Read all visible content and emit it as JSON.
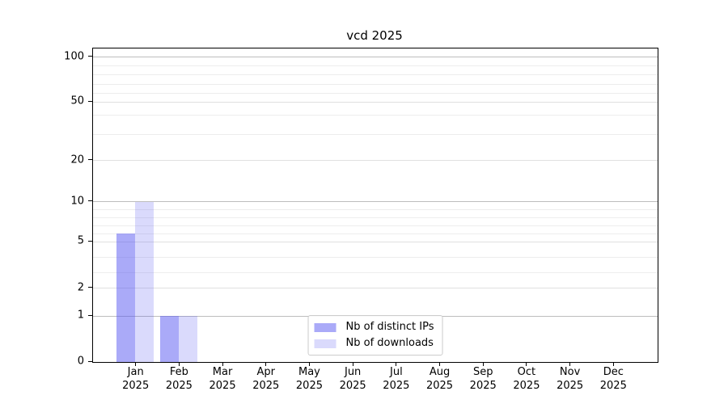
{
  "chart_data": {
    "type": "bar",
    "title": "vcd 2025",
    "categories": [
      "Jan",
      "Feb",
      "Mar",
      "Apr",
      "May",
      "Jun",
      "Jul",
      "Aug",
      "Sep",
      "Oct",
      "Nov",
      "Dec"
    ],
    "year_label": "2025",
    "series": [
      {
        "name": "Nb of distinct IPs",
        "color": "rgba(86,86,242,0.5)",
        "values": [
          6,
          1,
          0,
          0,
          0,
          0,
          0,
          0,
          0,
          0,
          0,
          0
        ]
      },
      {
        "name": "Nb of downloads",
        "color": "rgba(86,86,242,0.22)",
        "values": [
          10,
          1,
          0,
          0,
          0,
          0,
          0,
          0,
          0,
          0,
          0,
          0
        ]
      }
    ],
    "xlabel": "",
    "ylabel": "",
    "ylim": [
      0,
      100
    ],
    "y_axis": {
      "scale": "log-like with labeled ticks 0,1,2,5,10,20,50,100",
      "tick_values": [
        0,
        1,
        2,
        5,
        10,
        20,
        50,
        100
      ],
      "tick_labels": [
        "0",
        "1",
        "2",
        "5",
        "10",
        "20",
        "50",
        "100"
      ],
      "major_grid_values": [
        1,
        10,
        100
      ],
      "mid_grid_values": [
        2,
        5,
        20,
        50
      ],
      "minor_grid_values": [
        3,
        4,
        6,
        7,
        8,
        9,
        30,
        40,
        60,
        70,
        80,
        90
      ],
      "scale_anchors": [
        [
          0,
          0
        ],
        [
          1,
          0.1464
        ],
        [
          2,
          0.2354
        ],
        [
          5,
          0.3831
        ],
        [
          10,
          0.5111
        ],
        [
          20,
          0.642
        ],
        [
          30,
          0.7264
        ],
        [
          40,
          0.7865
        ],
        [
          50,
          0.8291
        ],
        [
          100,
          0.9724
        ]
      ]
    },
    "legend": {
      "position": "lower center",
      "entries": [
        "Nb of distinct IPs",
        "Nb of downloads"
      ]
    },
    "grid": "horizontal on",
    "colors": {
      "major_grid": "#bdbdbd",
      "mid_grid": "#e0e0e0",
      "minor_grid": "#ededed",
      "spine": "#000000",
      "background": "#ffffff"
    }
  }
}
